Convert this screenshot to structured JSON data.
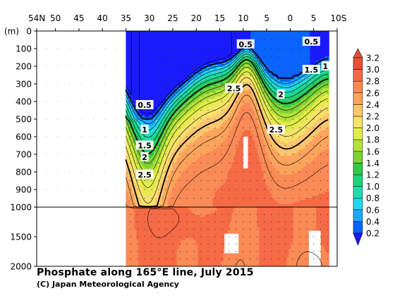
{
  "chart_data": {
    "type": "heatmap",
    "title": "Phosphate along 165°E line, July 2015",
    "credit": "(C) Japan Meteorological Agency",
    "x_tick_labels": [
      "54N",
      "50",
      "45",
      "40",
      "35",
      "30",
      "25",
      "20",
      "15",
      "10",
      "5",
      "0",
      "5",
      "10S"
    ],
    "x_ticks": [
      54,
      50,
      45,
      40,
      35,
      30,
      25,
      20,
      15,
      10,
      5,
      0,
      -5,
      -10
    ],
    "xlim": [
      54,
      -10
    ],
    "y_unit_label": "(m)",
    "y_tick_labels": [
      "0",
      "100",
      "200",
      "300",
      "400",
      "500",
      "600",
      "700",
      "800",
      "900",
      "1000",
      "1500",
      "2000"
    ],
    "y_ticks": [
      0,
      100,
      200,
      300,
      400,
      500,
      600,
      700,
      800,
      900,
      1000,
      1500,
      2000
    ],
    "ylim": [
      0,
      2000
    ],
    "y_scale_break": 1000,
    "data_extent_lat": [
      35,
      -8
    ],
    "colorbar": {
      "labels": [
        "0.2",
        "0.4",
        "0.6",
        "0.8",
        "1.0",
        "1.2",
        "1.4",
        "1.6",
        "1.8",
        "2.0",
        "2.2",
        "2.4",
        "2.6",
        "2.8",
        "3.0",
        "3.2"
      ],
      "levels": [
        0.2,
        0.4,
        0.6,
        0.8,
        1.0,
        1.2,
        1.4,
        1.6,
        1.8,
        2.0,
        2.2,
        2.4,
        2.6,
        2.8,
        3.0,
        3.2
      ],
      "colors": [
        "#1a1aff",
        "#0a64ff",
        "#1ea6ff",
        "#26d6ee",
        "#22dcb0",
        "#1fd27c",
        "#32c846",
        "#7cd236",
        "#b4e03a",
        "#e2ec48",
        "#f6e26a",
        "#fcc66e",
        "#fca45c",
        "#fa8a56",
        "#f66a46",
        "#ec5036"
      ]
    },
    "contour_labels": [
      {
        "text": "0.5",
        "lat": 9.5,
        "depth": 75
      },
      {
        "text": "0.5",
        "lat": -4.5,
        "depth": 60
      },
      {
        "text": "1.5",
        "lat": -4.5,
        "depth": 220
      },
      {
        "text": "1",
        "lat": -7.5,
        "depth": 200
      },
      {
        "text": "2.5",
        "lat": 12,
        "depth": 325
      },
      {
        "text": "2",
        "lat": 2,
        "depth": 360
      },
      {
        "text": "2.5",
        "lat": 3,
        "depth": 560
      },
      {
        "text": "0.5",
        "lat": 31,
        "depth": 420
      },
      {
        "text": "1",
        "lat": 31,
        "depth": 560
      },
      {
        "text": "1.5",
        "lat": 31,
        "depth": 650
      },
      {
        "text": "2",
        "lat": 31,
        "depth": 715
      },
      {
        "text": "2.5",
        "lat": 31,
        "depth": 815
      }
    ]
  }
}
